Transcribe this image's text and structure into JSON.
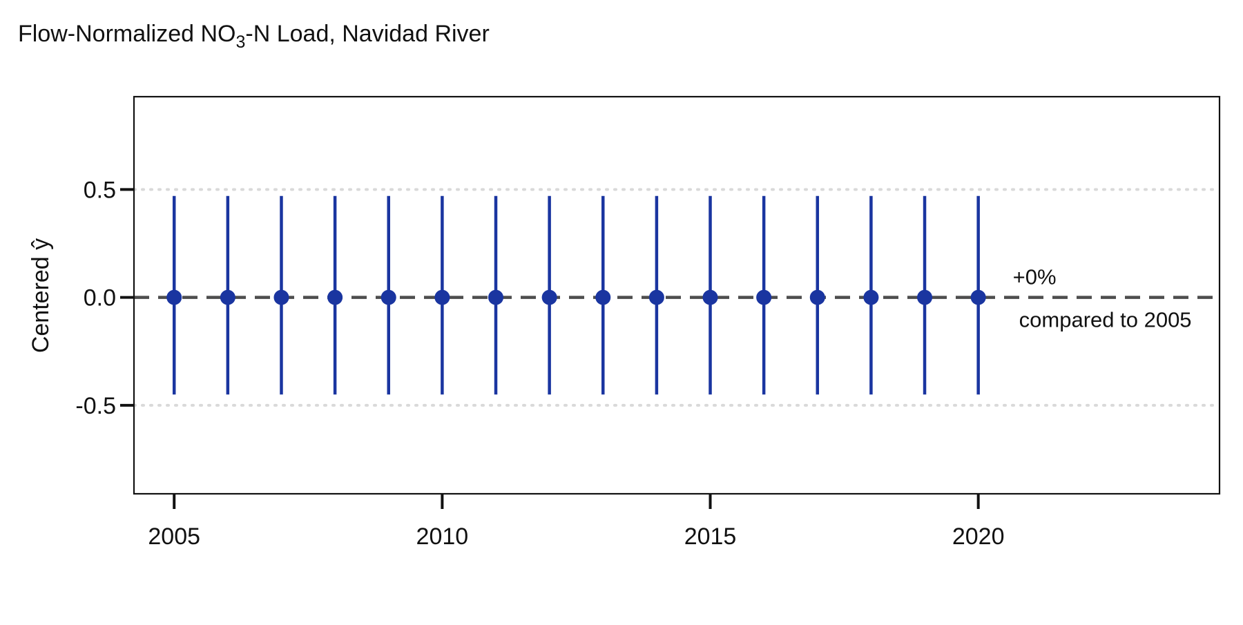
{
  "chart_data": {
    "type": "scatter",
    "title": {
      "prefix": "Flow-Normalized NO",
      "subscript": "3",
      "suffix": "-N Load, Navidad River"
    },
    "ylabel": "Centered",
    "ylabel_symbol": "ŷ",
    "xlim": [
      2004.25,
      2024.5
    ],
    "ylim": [
      -0.91,
      0.93
    ],
    "x_ticks": [
      2005,
      2010,
      2015,
      2020
    ],
    "x_tick_labels": [
      "2005",
      "2010",
      "2015",
      "2020"
    ],
    "y_ticks": [
      0.5,
      0.0,
      -0.5
    ],
    "y_tick_labels": [
      "0.5",
      "0.0",
      "-0.5"
    ],
    "reference_line": {
      "y": 0.0,
      "style": "dashed",
      "color": "#4d4d4d"
    },
    "gridlines_y": [
      0.5,
      -0.5
    ],
    "series": [
      {
        "color": "#1a35a0",
        "points": [
          {
            "x": 2005,
            "y": 0.0,
            "lo": -0.45,
            "hi": 0.47
          },
          {
            "x": 2006,
            "y": 0.0,
            "lo": -0.45,
            "hi": 0.47
          },
          {
            "x": 2007,
            "y": 0.0,
            "lo": -0.45,
            "hi": 0.47
          },
          {
            "x": 2008,
            "y": 0.0,
            "lo": -0.45,
            "hi": 0.47
          },
          {
            "x": 2009,
            "y": 0.0,
            "lo": -0.45,
            "hi": 0.47
          },
          {
            "x": 2010,
            "y": 0.0,
            "lo": -0.45,
            "hi": 0.47
          },
          {
            "x": 2011,
            "y": 0.0,
            "lo": -0.45,
            "hi": 0.47
          },
          {
            "x": 2012,
            "y": 0.0,
            "lo": -0.45,
            "hi": 0.47
          },
          {
            "x": 2013,
            "y": 0.0,
            "lo": -0.45,
            "hi": 0.47
          },
          {
            "x": 2014,
            "y": 0.0,
            "lo": -0.45,
            "hi": 0.47
          },
          {
            "x": 2015,
            "y": 0.0,
            "lo": -0.45,
            "hi": 0.47
          },
          {
            "x": 2016,
            "y": 0.0,
            "lo": -0.45,
            "hi": 0.47
          },
          {
            "x": 2017,
            "y": 0.0,
            "lo": -0.45,
            "hi": 0.47
          },
          {
            "x": 2018,
            "y": 0.0,
            "lo": -0.45,
            "hi": 0.47
          },
          {
            "x": 2019,
            "y": 0.0,
            "lo": -0.45,
            "hi": 0.47
          },
          {
            "x": 2020,
            "y": 0.0,
            "lo": -0.45,
            "hi": 0.47
          }
        ]
      }
    ],
    "annotations": [
      "+0%",
      "compared to 2005"
    ],
    "grid": true
  }
}
